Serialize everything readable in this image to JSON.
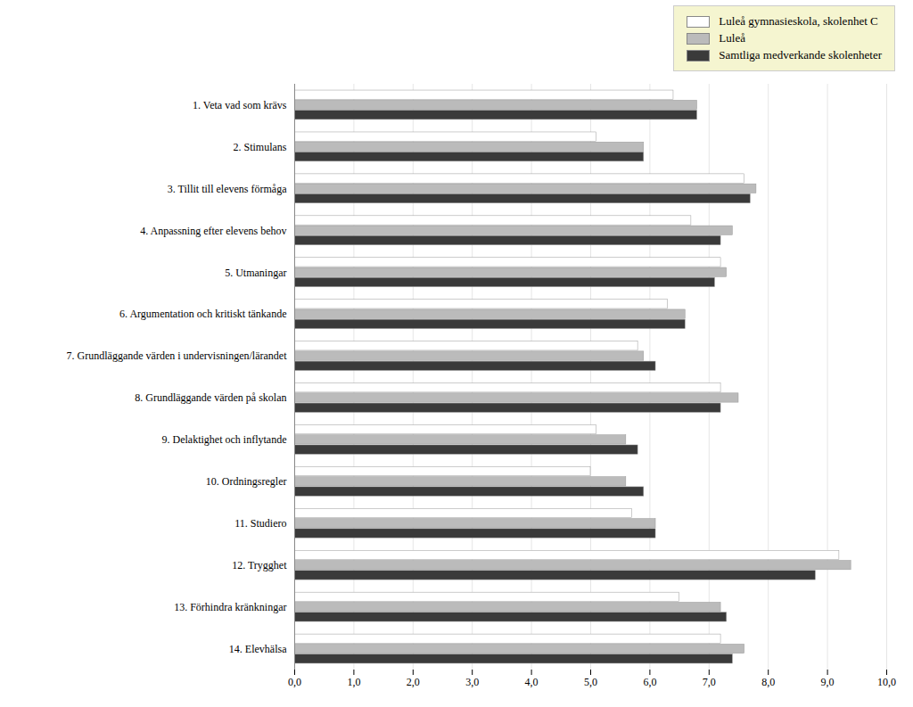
{
  "chart_data": {
    "type": "bar",
    "orientation": "horizontal",
    "categories": [
      "1. Veta vad som krävs",
      "2. Stimulans",
      "3. Tillit till elevens förmåga",
      "4. Anpassning efter elevens behov",
      "5. Utmaningar",
      "6. Argumentation och kritiskt tänkande",
      "7. Grundläggande värden i undervisningen/lärandet",
      "8. Grundläggande värden på skolan",
      "9. Delaktighet och inflytande",
      "10. Ordningsregler",
      "11. Studiero",
      "12. Trygghet",
      "13. Förhindra kränkningar",
      "14. Elevhälsa"
    ],
    "series": [
      {
        "name": "Luleå gymnasieskola, skolenhet C",
        "color": "#ffffff",
        "values": [
          6.4,
          5.1,
          7.6,
          6.7,
          7.2,
          6.3,
          5.8,
          7.2,
          5.1,
          5.0,
          5.7,
          9.2,
          6.5,
          7.2
        ]
      },
      {
        "name": "Luleå",
        "color": "#bbbbbb",
        "values": [
          6.8,
          5.9,
          7.8,
          7.4,
          7.3,
          6.6,
          5.9,
          7.5,
          5.6,
          5.6,
          6.1,
          9.4,
          7.2,
          7.6
        ]
      },
      {
        "name": "Samtliga medverkande skolenheter",
        "color": "#3a3a3a",
        "values": [
          6.8,
          5.9,
          7.7,
          7.2,
          7.1,
          6.6,
          6.1,
          7.2,
          5.8,
          5.9,
          6.1,
          8.8,
          7.3,
          7.4
        ]
      }
    ],
    "xlim": [
      0,
      10
    ],
    "xticks": [
      {
        "value": 0,
        "label": "0,0"
      },
      {
        "value": 1,
        "label": "1,0"
      },
      {
        "value": 2,
        "label": "2,0"
      },
      {
        "value": 3,
        "label": "3,0"
      },
      {
        "value": 4,
        "label": "4,0"
      },
      {
        "value": 5,
        "label": "5,0"
      },
      {
        "value": 6,
        "label": "6,0"
      },
      {
        "value": 7,
        "label": "7,0"
      },
      {
        "value": 8,
        "label": "8,0"
      },
      {
        "value": 9,
        "label": "9,0"
      },
      {
        "value": 10,
        "label": "10,0"
      }
    ],
    "grid": true,
    "legend": "top right"
  }
}
